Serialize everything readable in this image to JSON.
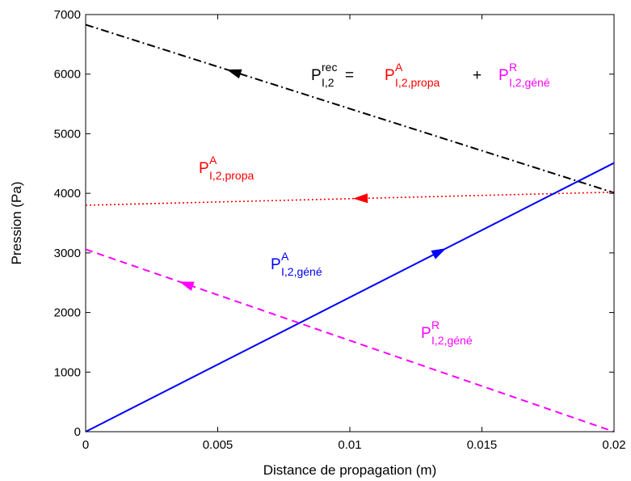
{
  "chart_data": {
    "type": "line",
    "title": "",
    "xlabel": "Distance de propagation (m)",
    "ylabel": "Pression (Pa)",
    "xlim": [
      0,
      0.02
    ],
    "ylim": [
      0,
      7000
    ],
    "x_ticks": [
      0,
      0.005,
      0.01,
      0.015,
      0.02
    ],
    "x_tick_labels": [
      "0",
      "0.005",
      "0.01",
      "0.015",
      "0.02"
    ],
    "y_ticks": [
      0,
      1000,
      2000,
      3000,
      4000,
      5000,
      6000,
      7000
    ],
    "y_tick_labels": [
      "0",
      "1000",
      "2000",
      "3000",
      "4000",
      "5000",
      "6000",
      "7000"
    ],
    "grid": false,
    "series": [
      {
        "key": "rec",
        "color": "#000000",
        "style": "dashdot",
        "arrow": "left",
        "x": [
          0,
          0.02
        ],
        "y": [
          6830,
          4010
        ]
      },
      {
        "key": "propa",
        "color": "#ff0000",
        "style": "dotted",
        "arrow": "left",
        "x": [
          0,
          0.02
        ],
        "y": [
          3800,
          4020
        ]
      },
      {
        "key": "gene_A",
        "color": "#0000ff",
        "style": "solid",
        "arrow": "right",
        "x": [
          0,
          0.02
        ],
        "y": [
          0,
          4510
        ]
      },
      {
        "key": "gene_R",
        "color": "#ff00ff",
        "style": "dashed",
        "arrow": "left",
        "x": [
          0,
          0.02
        ],
        "y": [
          3060,
          0
        ]
      }
    ],
    "annotations": {
      "eq_rec": {
        "main": "P",
        "sup": "rec",
        "sub": "I,2",
        "color": "#000000"
      },
      "eq_equals": {
        "text": "=",
        "color": "#000000"
      },
      "eq_propa": {
        "main": "P",
        "sup": "A",
        "sub": "I,2,propa",
        "color": "#ff0000"
      },
      "eq_plus": {
        "text": "+",
        "color": "#000000"
      },
      "eq_gene": {
        "main": "P",
        "sup": "R",
        "sub": "I,2,géné",
        "color": "#ff00ff"
      },
      "label_propa": {
        "main": "P",
        "sup": "A",
        "sub": "I,2,propa",
        "color": "#ff0000"
      },
      "label_gene_A": {
        "main": "P",
        "sup": "A",
        "sub": "I,2,géné",
        "color": "#0000ff"
      },
      "label_gene_R": {
        "main": "P",
        "sup": "R",
        "sub": "I,2,géné",
        "color": "#ff00ff"
      }
    }
  }
}
